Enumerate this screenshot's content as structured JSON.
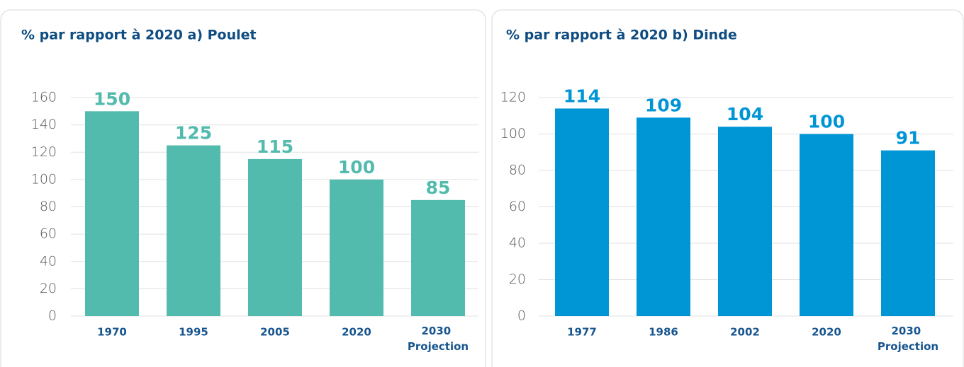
{
  "chart_data": [
    {
      "type": "bar",
      "title": "% par rapport à 2020 a) Poulet",
      "categories": [
        "1970",
        "1995",
        "2005",
        "2020",
        "2030 Projection"
      ],
      "values": [
        150,
        125,
        115,
        100,
        85
      ],
      "color": "#52bbad",
      "ylim": [
        0,
        160
      ],
      "yticks": [
        0,
        20,
        40,
        60,
        80,
        100,
        120,
        140,
        160
      ],
      "grid": true
    },
    {
      "type": "bar",
      "title": "% par rapport à 2020  b) Dinde",
      "categories": [
        "1977",
        "1986",
        "2002",
        "2020",
        "2030 Projection"
      ],
      "values": [
        114,
        109,
        104,
        100,
        91
      ],
      "color": "#0096d6",
      "ylim": [
        0,
        120
      ],
      "yticks": [
        0,
        20,
        40,
        60,
        80,
        100,
        120
      ],
      "grid": true
    }
  ]
}
